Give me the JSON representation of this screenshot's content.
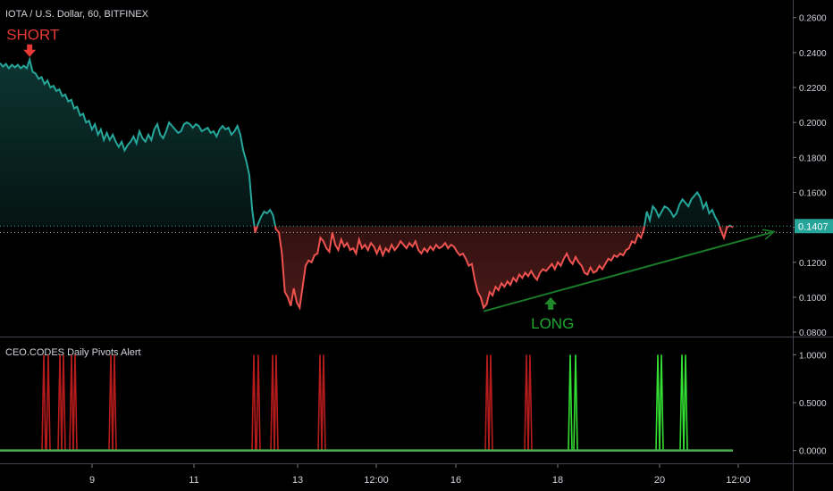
{
  "chart_data": [
    {
      "type": "area",
      "title": "IOTA / U.S. Dollar, 60, BITFINEX",
      "colors": {
        "above": "#26a69a",
        "below": "#ef5350",
        "long": "#1e8a2c",
        "short": "#e53935",
        "trendline": "#1b7a2a",
        "axis_text": "#d1d4dc",
        "current_price_bg": "#26a69a"
      },
      "ylim": [
        0.078,
        0.266
      ],
      "y_ticks": [
        "0.0800",
        "0.1000",
        "0.1200",
        "0.1400",
        "0.1600",
        "0.1800",
        "0.2000",
        "0.2200",
        "0.2400",
        "0.2600"
      ],
      "x_tick_labels": [
        "9",
        "11",
        "13",
        "12:00",
        "16",
        "18",
        "20",
        "12:00"
      ],
      "reference_levels": [
        0.1407,
        0.1371
      ],
      "current_price_label": "0.1407",
      "series": [
        {
          "values": [
            0.234,
            0.232,
            0.2335,
            0.231,
            0.233,
            0.2315,
            0.233,
            0.231,
            0.2325,
            0.231,
            0.236,
            0.229,
            0.228,
            0.225,
            0.226,
            0.222,
            0.224,
            0.22,
            0.221,
            0.218,
            0.219,
            0.215,
            0.216,
            0.212,
            0.213,
            0.208,
            0.209,
            0.204,
            0.205,
            0.2,
            0.201,
            0.196,
            0.199,
            0.193,
            0.196,
            0.19,
            0.194,
            0.19,
            0.193,
            0.189,
            0.186,
            0.189,
            0.184,
            0.187,
            0.189,
            0.192,
            0.188,
            0.195,
            0.191,
            0.189,
            0.193,
            0.19,
            0.196,
            0.199,
            0.193,
            0.191,
            0.195,
            0.2,
            0.198,
            0.196,
            0.194,
            0.195,
            0.199,
            0.2,
            0.199,
            0.197,
            0.199,
            0.198,
            0.195,
            0.196,
            0.197,
            0.194,
            0.195,
            0.192,
            0.196,
            0.198,
            0.196,
            0.197,
            0.193,
            0.195,
            0.198,
            0.193,
            0.184,
            0.178,
            0.17,
            0.15,
            0.137,
            0.142,
            0.146,
            0.149,
            0.148,
            0.15,
            0.147,
            0.139,
            0.137,
            0.125,
            0.103,
            0.1,
            0.095,
            0.105,
            0.097,
            0.094,
            0.106,
            0.118,
            0.121,
            0.12,
            0.124,
            0.125,
            0.134,
            0.132,
            0.128,
            0.126,
            0.137,
            0.13,
            0.127,
            0.133,
            0.129,
            0.131,
            0.127,
            0.128,
            0.125,
            0.133,
            0.128,
            0.13,
            0.127,
            0.131,
            0.129,
            0.125,
            0.129,
            0.124,
            0.128,
            0.126,
            0.13,
            0.127,
            0.129,
            0.132,
            0.13,
            0.128,
            0.131,
            0.129,
            0.132,
            0.127,
            0.125,
            0.128,
            0.126,
            0.129,
            0.127,
            0.13,
            0.128,
            0.129,
            0.131,
            0.128,
            0.13,
            0.129,
            0.126,
            0.124,
            0.125,
            0.122,
            0.118,
            0.119,
            0.11,
            0.103,
            0.1,
            0.094,
            0.096,
            0.103,
            0.101,
            0.106,
            0.104,
            0.108,
            0.106,
            0.109,
            0.107,
            0.111,
            0.109,
            0.113,
            0.111,
            0.114,
            0.112,
            0.115,
            0.112,
            0.11,
            0.114,
            0.116,
            0.115,
            0.117,
            0.119,
            0.116,
            0.12,
            0.118,
            0.122,
            0.125,
            0.121,
            0.119,
            0.123,
            0.12,
            0.118,
            0.114,
            0.113,
            0.117,
            0.114,
            0.115,
            0.118,
            0.116,
            0.119,
            0.122,
            0.121,
            0.124,
            0.123,
            0.125,
            0.124,
            0.127,
            0.128,
            0.132,
            0.131,
            0.136,
            0.134,
            0.139,
            0.149,
            0.144,
            0.152,
            0.15,
            0.146,
            0.149,
            0.152,
            0.151,
            0.149,
            0.146,
            0.148,
            0.153,
            0.156,
            0.154,
            0.152,
            0.156,
            0.158,
            0.16,
            0.157,
            0.151,
            0.154,
            0.148,
            0.15,
            0.146,
            0.143,
            0.138,
            0.134,
            0.14,
            0.141,
            0.14
          ]
        }
      ],
      "annotations": [
        {
          "text": "SHORT",
          "kind": "short"
        },
        {
          "text": "LONG",
          "kind": "long"
        }
      ]
    },
    {
      "type": "line",
      "title": "CEO.CODES Daily Pivots Alert",
      "ylim": [
        -0.05,
        1.05
      ],
      "y_ticks": [
        "0.0000",
        "0.5000",
        "1.0000"
      ],
      "baseline": 0,
      "colors": {
        "baseline": "#4caf50"
      },
      "series": [
        {
          "name": "short",
          "color": "#b71c1c",
          "spikes": [
            [
              49,
              1
            ],
            [
              54,
              1
            ],
            [
              67,
              1
            ],
            [
              71,
              1
            ],
            [
              80,
              1
            ],
            [
              84,
              1
            ],
            [
              124,
              1
            ],
            [
              128,
              1
            ],
            [
              284,
              1
            ],
            [
              289,
              1
            ],
            [
              305,
              1
            ],
            [
              309,
              1
            ],
            [
              358,
              1
            ],
            [
              362,
              1
            ],
            [
              545,
              1
            ],
            [
              549,
              1
            ],
            [
              589,
              1
            ],
            [
              593,
              1
            ]
          ]
        },
        {
          "name": "long",
          "color": "#33e033",
          "spikes": [
            [
              638,
              1
            ],
            [
              644,
              1
            ],
            [
              736,
              1
            ],
            [
              740,
              1
            ],
            [
              763,
              1
            ],
            [
              767,
              1
            ]
          ]
        }
      ]
    }
  ]
}
